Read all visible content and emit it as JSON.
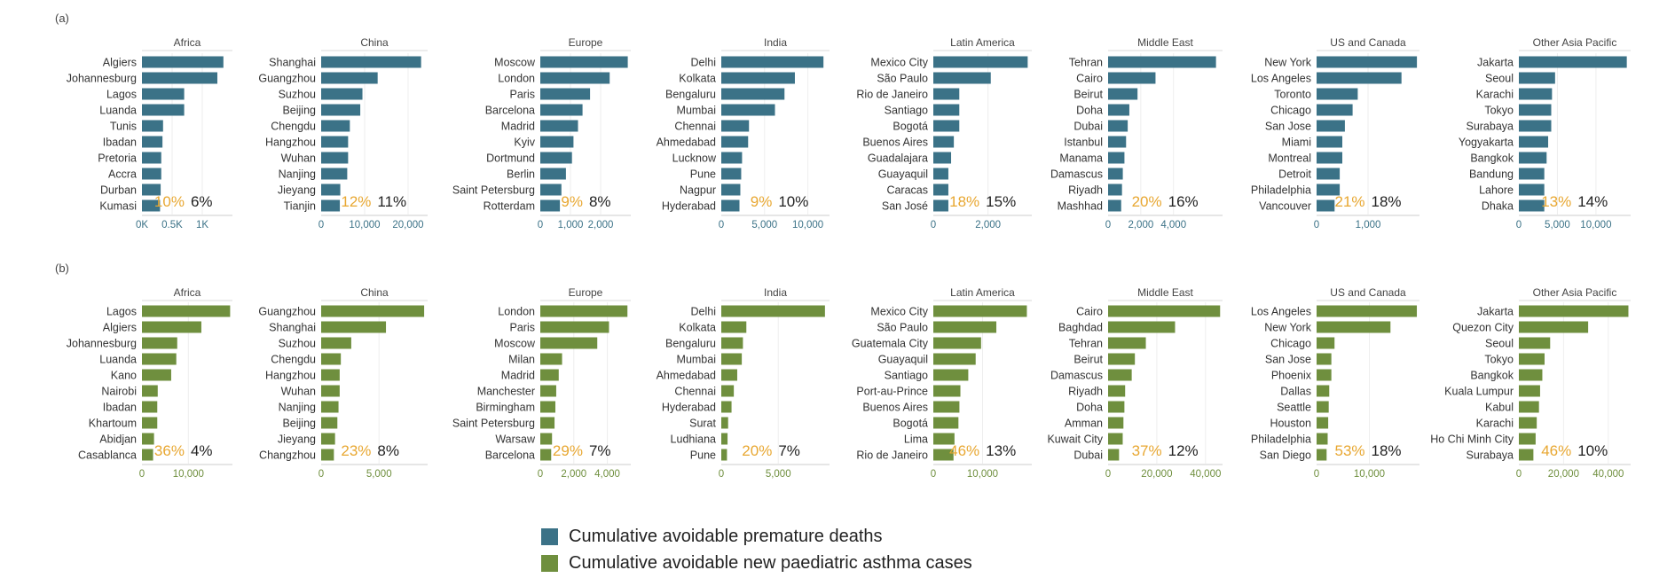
{
  "colors": {
    "deaths": "#3b7287",
    "asthma": "#6f8f3e",
    "pct_gold": "#e8a731",
    "pct_dark": "#222222"
  },
  "legend": [
    {
      "label": "Cumulative avoidable premature deaths",
      "color": "#3b7287"
    },
    {
      "label": "Cumulative avoidable new paediatric asthma cases",
      "color": "#6f8f3e"
    }
  ],
  "chart_data": [
    {
      "type": "bar",
      "panel": "(a)",
      "series_name": "Cumulative avoidable premature deaths",
      "subplots": [
        {
          "region": "Africa",
          "cities": [
            "Algiers",
            "Johannesburg",
            "Lagos",
            "Luanda",
            "Tunis",
            "Ibadan",
            "Pretoria",
            "Accra",
            "Durban",
            "Kumasi"
          ],
          "values": [
            1350,
            1250,
            700,
            700,
            350,
            340,
            320,
            320,
            310,
            300
          ],
          "xlim": [
            0,
            1500
          ],
          "ticks": [
            0,
            500,
            1000
          ],
          "tick_labels": [
            "0K",
            "0.5K",
            "1K"
          ],
          "pct_gold": "10%",
          "pct_dark": "6%"
        },
        {
          "region": "China",
          "cities": [
            "Shanghai",
            "Guangzhou",
            "Suzhou",
            "Beijing",
            "Chengdu",
            "Hangzhou",
            "Wuhan",
            "Nanjing",
            "Jieyang",
            "Tianjin"
          ],
          "values": [
            23000,
            13000,
            9500,
            9000,
            6600,
            6200,
            6200,
            6000,
            4400,
            4300
          ],
          "xlim": [
            0,
            24500
          ],
          "ticks": [
            0,
            10000,
            20000
          ],
          "tick_labels": [
            "0",
            "10,000",
            "20,000"
          ],
          "pct_gold": "12%",
          "pct_dark": "11%"
        },
        {
          "region": "Europe",
          "cities": [
            "Moscow",
            "London",
            "Paris",
            "Barcelona",
            "Madrid",
            "Kyiv",
            "Dortmund",
            "Berlin",
            "Saint Petersburg",
            "Rotterdam"
          ],
          "values": [
            2900,
            2300,
            1650,
            1400,
            1250,
            1100,
            1050,
            850,
            700,
            650
          ],
          "xlim": [
            0,
            3000
          ],
          "ticks": [
            0,
            1000,
            2000
          ],
          "tick_labels": [
            "0",
            "1,000",
            "2,000"
          ],
          "pct_gold": "9%",
          "pct_dark": "8%"
        },
        {
          "region": "India",
          "cities": [
            "Delhi",
            "Kolkata",
            "Bengaluru",
            "Mumbai",
            "Chennai",
            "Ahmedabad",
            "Lucknow",
            "Pune",
            "Nagpur",
            "Hyderabad"
          ],
          "values": [
            11800,
            8500,
            7300,
            6200,
            3200,
            3100,
            2400,
            2300,
            2200,
            2100
          ],
          "xlim": [
            0,
            12500
          ],
          "ticks": [
            0,
            5000,
            10000
          ],
          "tick_labels": [
            "0",
            "5,000",
            "10,000"
          ],
          "pct_gold": "9%",
          "pct_dark": "10%"
        },
        {
          "region": "Latin America",
          "cities": [
            "Mexico City",
            "São Paulo",
            "Rio de Janeiro",
            "Santiago",
            "Bogotá",
            "Buenos Aires",
            "Guadalajara",
            "Guayaquil",
            "Caracas",
            "San José"
          ],
          "values": [
            3450,
            2100,
            950,
            950,
            950,
            750,
            650,
            550,
            550,
            550
          ],
          "xlim": [
            0,
            3600
          ],
          "ticks": [
            0,
            2000
          ],
          "tick_labels": [
            "0",
            "2,000"
          ],
          "pct_gold": "18%",
          "pct_dark": "15%"
        },
        {
          "region": "Middle East",
          "cities": [
            "Tehran",
            "Cairo",
            "Beirut",
            "Doha",
            "Dubai",
            "Istanbul",
            "Manama",
            "Damascus",
            "Riyadh",
            "Mashhad"
          ],
          "values": [
            6600,
            2900,
            1800,
            1300,
            1200,
            1100,
            1000,
            900,
            850,
            800
          ],
          "xlim": [
            0,
            7000
          ],
          "ticks": [
            0,
            2000,
            4000
          ],
          "tick_labels": [
            "0",
            "2,000",
            "4,000"
          ],
          "pct_gold": "20%",
          "pct_dark": "16%"
        },
        {
          "region": "US and Canada",
          "cities": [
            "New York",
            "Los Angeles",
            "Toronto",
            "Chicago",
            "San Jose",
            "Miami",
            "Montreal",
            "Detroit",
            "Philadelphia",
            "Vancouver"
          ],
          "values": [
            1950,
            1650,
            800,
            700,
            550,
            500,
            500,
            450,
            450,
            350
          ],
          "xlim": [
            0,
            2000
          ],
          "ticks": [
            0,
            1000
          ],
          "tick_labels": [
            "0",
            "1,000"
          ],
          "pct_gold": "21%",
          "pct_dark": "18%"
        },
        {
          "region": "Other Asia Pacific",
          "cities": [
            "Jakarta",
            "Seoul",
            "Karachi",
            "Tokyo",
            "Surabaya",
            "Yogyakarta",
            "Bangkok",
            "Bandung",
            "Lahore",
            "Dhaka"
          ],
          "values": [
            14000,
            4700,
            4300,
            4200,
            4200,
            3800,
            3600,
            3300,
            3300,
            3300
          ],
          "xlim": [
            0,
            14500
          ],
          "ticks": [
            0,
            5000,
            10000
          ],
          "tick_labels": [
            "0",
            "5,000",
            "10,000"
          ],
          "pct_gold": "13%",
          "pct_dark": "14%"
        }
      ]
    },
    {
      "type": "bar",
      "panel": "(b)",
      "series_name": "Cumulative avoidable new paediatric asthma cases",
      "subplots": [
        {
          "region": "Africa",
          "cities": [
            "Lagos",
            "Algiers",
            "Johannesburg",
            "Luanda",
            "Kano",
            "Nairobi",
            "Ibadan",
            "Khartoum",
            "Abidjan",
            "Casablanca"
          ],
          "values": [
            19000,
            12800,
            7600,
            7400,
            6300,
            3400,
            3300,
            3300,
            2600,
            2400
          ],
          "xlim": [
            0,
            19500
          ],
          "ticks": [
            0,
            10000
          ],
          "tick_labels": [
            "0",
            "10,000"
          ],
          "pct_gold": "36%",
          "pct_dark": "4%"
        },
        {
          "region": "China",
          "cities": [
            "Guangzhou",
            "Shanghai",
            "Suzhou",
            "Chengdu",
            "Hangzhou",
            "Wuhan",
            "Nanjing",
            "Beijing",
            "Jieyang",
            "Changzhou"
          ],
          "values": [
            8900,
            5600,
            2600,
            1700,
            1600,
            1600,
            1500,
            1400,
            1200,
            1100
          ],
          "xlim": [
            0,
            9200
          ],
          "ticks": [
            0,
            5000
          ],
          "tick_labels": [
            "0",
            "5,000"
          ],
          "pct_gold": "23%",
          "pct_dark": "8%"
        },
        {
          "region": "Europe",
          "cities": [
            "London",
            "Paris",
            "Moscow",
            "Milan",
            "Madrid",
            "Manchester",
            "Birmingham",
            "Saint Petersburg",
            "Warsaw",
            "Barcelona"
          ],
          "values": [
            5200,
            4100,
            3400,
            1300,
            1100,
            950,
            900,
            850,
            700,
            650
          ],
          "xlim": [
            0,
            5400
          ],
          "ticks": [
            0,
            2000,
            4000
          ],
          "tick_labels": [
            "0",
            "2,000",
            "4,000"
          ],
          "pct_gold": "29%",
          "pct_dark": "7%"
        },
        {
          "region": "India",
          "cities": [
            "Delhi",
            "Kolkata",
            "Bengaluru",
            "Mumbai",
            "Ahmedabad",
            "Chennai",
            "Hyderabad",
            "Surat",
            "Ludhiana",
            "Pune"
          ],
          "values": [
            9100,
            2200,
            1900,
            1800,
            1400,
            1100,
            900,
            600,
            550,
            500
          ],
          "xlim": [
            0,
            9500
          ],
          "ticks": [
            0,
            5000
          ],
          "tick_labels": [
            "0",
            "5,000"
          ],
          "pct_gold": "20%",
          "pct_dark": "7%"
        },
        {
          "region": "Latin America",
          "cities": [
            "Mexico City",
            "São Paulo",
            "Guatemala City",
            "Guayaquil",
            "Santiago",
            "Port-au-Prince",
            "Buenos Aires",
            "Bogotá",
            "Lima",
            "Rio de Janeiro"
          ],
          "values": [
            19000,
            12800,
            9700,
            8600,
            7100,
            5500,
            5300,
            5100,
            4300,
            4100
          ],
          "xlim": [
            0,
            20000
          ],
          "ticks": [
            0,
            10000
          ],
          "tick_labels": [
            "0",
            "10,000"
          ],
          "pct_gold": "46%",
          "pct_dark": "13%"
        },
        {
          "region": "Middle East",
          "cities": [
            "Cairo",
            "Baghdad",
            "Tehran",
            "Beirut",
            "Damascus",
            "Riyadh",
            "Doha",
            "Amman",
            "Kuwait City",
            "Dubai"
          ],
          "values": [
            46000,
            27500,
            15500,
            11000,
            9700,
            7000,
            6700,
            6300,
            6000,
            4500
          ],
          "xlim": [
            0,
            47000
          ],
          "ticks": [
            0,
            20000,
            40000
          ],
          "tick_labels": [
            "0",
            "20,000",
            "40,000"
          ],
          "pct_gold": "37%",
          "pct_dark": "12%"
        },
        {
          "region": "US and Canada",
          "cities": [
            "Los Angeles",
            "New York",
            "Chicago",
            "San Jose",
            "Phoenix",
            "Dallas",
            "Seattle",
            "Houston",
            "Philadelphia",
            "San Diego"
          ],
          "values": [
            19000,
            14000,
            3400,
            2800,
            2800,
            2400,
            2300,
            2200,
            2100,
            1900
          ],
          "xlim": [
            0,
            19500
          ],
          "ticks": [
            0,
            10000
          ],
          "tick_labels": [
            "0",
            "10,000"
          ],
          "pct_gold": "53%",
          "pct_dark": "18%"
        },
        {
          "region": "Other Asia Pacific",
          "cities": [
            "Jakarta",
            "Quezon City",
            "Seoul",
            "Tokyo",
            "Bangkok",
            "Kuala Lumpur",
            "Kabul",
            "Karachi",
            "Ho Chi Minh City",
            "Surabaya"
          ],
          "values": [
            49000,
            31000,
            14000,
            11500,
            10500,
            9500,
            9000,
            8000,
            7500,
            6500
          ],
          "xlim": [
            0,
            50000
          ],
          "ticks": [
            0,
            20000,
            40000
          ],
          "tick_labels": [
            "0",
            "20,000",
            "40,000"
          ],
          "pct_gold": "46%",
          "pct_dark": "10%"
        }
      ]
    }
  ]
}
